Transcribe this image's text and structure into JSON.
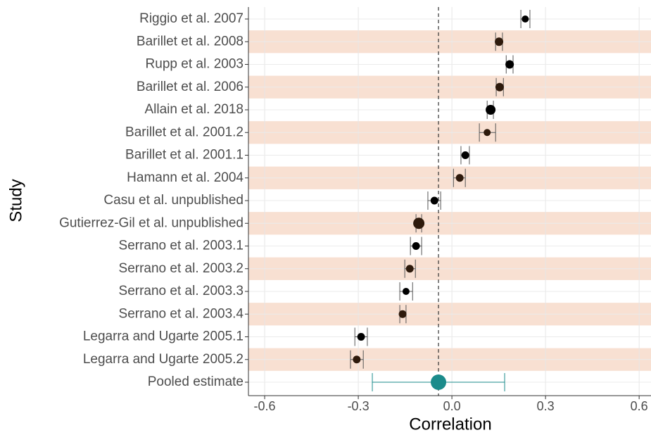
{
  "chart_data": {
    "type": "forest",
    "x_label": "Correlation",
    "y_label": "Study",
    "categories": [
      "Riggio et al. 2007",
      "Barillet et al. 2008",
      "Rupp et al. 2003",
      "Barillet et al. 2006",
      "Allain et al. 2018",
      "Barillet et al. 2001.2",
      "Barillet et al. 2001.1",
      "Hamann et al. 2004",
      "Casu et al. unpublished",
      "Gutierrez-Gil et al. unpublished",
      "Serrano et al. 2003.1",
      "Serrano et al. 2003.2",
      "Serrano et al. 2003.3",
      "Serrano et al. 2003.4",
      "Legarra and Ugarte 2005.1",
      "Legarra and Ugarte 2005.2"
    ],
    "values": [
      0.235,
      0.151,
      0.185,
      0.153,
      0.124,
      0.113,
      0.043,
      0.025,
      -0.056,
      -0.106,
      -0.115,
      -0.135,
      -0.147,
      -0.158,
      -0.291,
      -0.305
    ],
    "ci_low": [
      0.221,
      0.14,
      0.174,
      0.142,
      0.113,
      0.088,
      0.029,
      0.005,
      -0.077,
      -0.115,
      -0.133,
      -0.151,
      -0.167,
      -0.167,
      -0.311,
      -0.325
    ],
    "ci_high": [
      0.25,
      0.162,
      0.196,
      0.165,
      0.133,
      0.14,
      0.056,
      0.043,
      -0.036,
      -0.097,
      -0.097,
      -0.117,
      -0.126,
      -0.147,
      -0.271,
      -0.284
    ],
    "weights": [
      25,
      36,
      36,
      36,
      49,
      25,
      30,
      30,
      30,
      64,
      30,
      30,
      25,
      30,
      30,
      30
    ],
    "color": "#000000",
    "shaded_color": "#2e1a0c",
    "band_color": "#f8e0d2",
    "pooled": {
      "label": "Pooled estimate",
      "value": -0.043,
      "ci_low": -0.255,
      "ci_high": 0.169,
      "color": "#1b8b8b"
    },
    "reference_line": -0.043,
    "xlim": [
      -0.652,
      0.638
    ],
    "xticks": [
      -0.6,
      -0.3,
      {
        "value": 0,
        "label": "0.0"
      },
      0.3,
      0.6
    ],
    "grid": true
  }
}
